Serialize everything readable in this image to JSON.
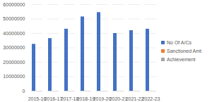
{
  "chart_data": {
    "type": "bar",
    "categories": [
      "2015-16",
      "2016-17",
      "2017-18",
      "2018-19",
      "2019-20",
      "2020-21",
      "2021-22",
      "2022-23"
    ],
    "series": [
      {
        "name": "No Of A/Cs",
        "color": "#4472c4",
        "values": [
          32500000,
          36500000,
          43000000,
          51500000,
          54500000,
          40000000,
          42000000,
          43000000
        ]
      },
      {
        "name": "Sanctioned Amt",
        "color": "#ed7d31",
        "values": [
          0,
          0,
          0,
          0,
          0,
          0,
          0,
          0
        ]
      },
      {
        "name": "Achievement",
        "color": "#a5a5a5",
        "values": [
          0,
          0,
          0,
          0,
          0,
          0,
          0,
          0
        ]
      }
    ],
    "ylim": [
      0,
      60000000
    ],
    "yticks": [
      0,
      10000000,
      20000000,
      30000000,
      40000000,
      50000000,
      60000000
    ],
    "grid": true,
    "legend": "right"
  }
}
